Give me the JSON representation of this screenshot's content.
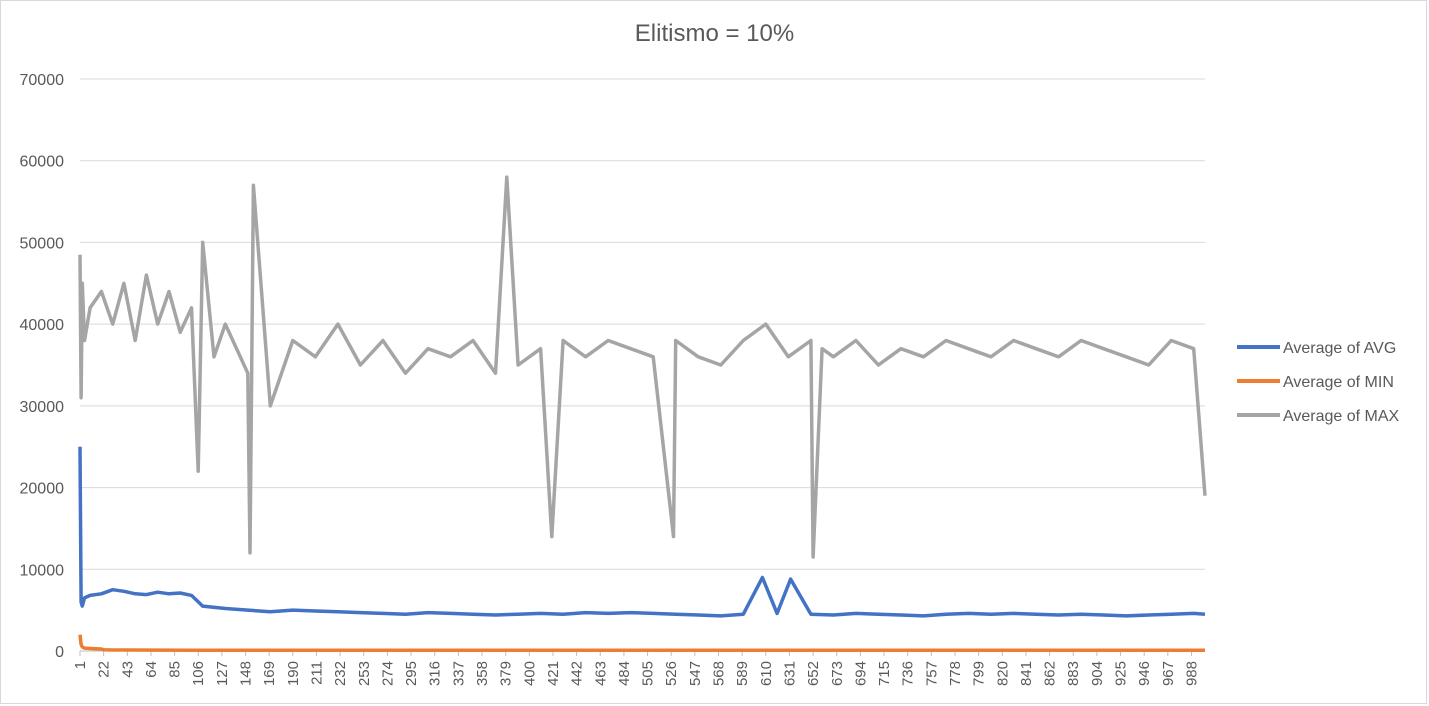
{
  "chart_data": {
    "type": "line",
    "title": "Elitismo = 10%",
    "ylim": [
      0,
      70000
    ],
    "yticks": [
      0,
      10000,
      20000,
      30000,
      40000,
      50000,
      60000,
      70000
    ],
    "xlim": [
      1,
      1000
    ],
    "xticks": [
      "1",
      "22",
      "43",
      "64",
      "85",
      "106",
      "127",
      "148",
      "169",
      "190",
      "211",
      "232",
      "253",
      "274",
      "295",
      "316",
      "337",
      "358",
      "379",
      "400",
      "421",
      "442",
      "463",
      "484",
      "505",
      "526",
      "547",
      "568",
      "589",
      "610",
      "631",
      "652",
      "673",
      "694",
      "715",
      "736",
      "757",
      "778",
      "799",
      "820",
      "841",
      "862",
      "883",
      "904",
      "925",
      "946",
      "967",
      "988"
    ],
    "grid": "horizontal",
    "legend": "right",
    "series": [
      {
        "name": "Average of AVG",
        "color": "#4472C4",
        "x": [
          1,
          2,
          3,
          5,
          10,
          20,
          30,
          40,
          50,
          60,
          70,
          80,
          90,
          100,
          110,
          130,
          150,
          170,
          190,
          210,
          230,
          250,
          270,
          290,
          310,
          330,
          350,
          370,
          390,
          410,
          430,
          450,
          470,
          490,
          510,
          530,
          550,
          570,
          590,
          607,
          620,
          632,
          650,
          670,
          690,
          710,
          730,
          750,
          770,
          790,
          810,
          830,
          850,
          870,
          890,
          910,
          930,
          950,
          970,
          990,
          1000
        ],
        "values": [
          25000,
          6000,
          5500,
          6500,
          6800,
          7000,
          7500,
          7300,
          7000,
          6900,
          7200,
          7000,
          7100,
          6800,
          5500,
          5200,
          5000,
          4800,
          5000,
          4900,
          4800,
          4700,
          4600,
          4500,
          4700,
          4600,
          4500,
          4400,
          4500,
          4600,
          4500,
          4700,
          4600,
          4700,
          4600,
          4500,
          4400,
          4300,
          4500,
          9000,
          4600,
          8800,
          4500,
          4400,
          4600,
          4500,
          4400,
          4300,
          4500,
          4600,
          4500,
          4600,
          4500,
          4400,
          4500,
          4400,
          4300,
          4400,
          4500,
          4600,
          4500
        ]
      },
      {
        "name": "Average of MIN",
        "color": "#ED7D31",
        "x": [
          1,
          2,
          3,
          5,
          10,
          20,
          22,
          30,
          100,
          200,
          300,
          400,
          500,
          600,
          700,
          800,
          900,
          1000
        ],
        "values": [
          2000,
          800,
          500,
          350,
          300,
          250,
          150,
          120,
          100,
          100,
          100,
          100,
          100,
          100,
          100,
          100,
          100,
          100
        ]
      },
      {
        "name": "Average of MAX",
        "color": "#A5A5A5",
        "x": [
          1,
          2,
          3,
          5,
          10,
          20,
          30,
          40,
          50,
          60,
          70,
          80,
          90,
          100,
          106,
          110,
          120,
          130,
          150,
          152,
          155,
          170,
          190,
          210,
          230,
          250,
          270,
          290,
          310,
          330,
          350,
          370,
          380,
          390,
          410,
          420,
          430,
          450,
          470,
          490,
          510,
          528,
          530,
          550,
          570,
          590,
          610,
          630,
          650,
          652,
          660,
          670,
          690,
          710,
          730,
          750,
          770,
          790,
          810,
          830,
          850,
          870,
          890,
          910,
          930,
          950,
          970,
          990,
          1000
        ],
        "values": [
          48500,
          31000,
          45000,
          38000,
          42000,
          44000,
          40000,
          45000,
          38000,
          46000,
          40000,
          44000,
          39000,
          42000,
          22000,
          50000,
          36000,
          40000,
          34000,
          12000,
          57000,
          30000,
          38000,
          36000,
          40000,
          35000,
          38000,
          34000,
          37000,
          36000,
          38000,
          34000,
          58000,
          35000,
          37000,
          14000,
          38000,
          36000,
          38000,
          37000,
          36000,
          14000,
          38000,
          36000,
          35000,
          38000,
          40000,
          36000,
          38000,
          11500,
          37000,
          36000,
          38000,
          35000,
          37000,
          36000,
          38000,
          37000,
          36000,
          38000,
          37000,
          36000,
          38000,
          37000,
          36000,
          35000,
          38000,
          37000,
          19000
        ]
      }
    ]
  }
}
